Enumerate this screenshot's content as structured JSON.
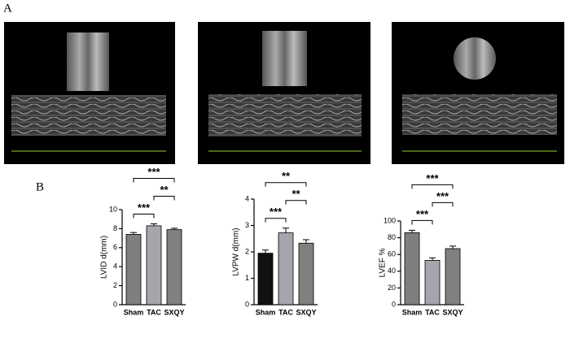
{
  "panel_labels": [
    "A",
    "B"
  ],
  "chart_data": [
    {
      "type": "bar",
      "y_label": "LVID d(mm)",
      "categories": [
        "Sham",
        "TAC",
        "SXQY"
      ],
      "values": [
        7.4,
        8.3,
        7.9
      ],
      "errors": [
        0.2,
        0.2,
        0.15
      ],
      "colors": [
        "#7f7f7f",
        "#a5a5ac",
        "#808080"
      ],
      "ylim": [
        0,
        10
      ],
      "yticks": [
        0,
        2,
        4,
        6,
        8,
        10
      ],
      "annotations": [
        {
          "text": "***",
          "from": 0,
          "to": 1
        },
        {
          "text": "**",
          "from": 1,
          "to": 2
        },
        {
          "text": "***",
          "from": 0,
          "to": 2
        }
      ]
    },
    {
      "type": "bar",
      "y_label": "LVPW d(mm)",
      "categories": [
        "Sham",
        "TAC",
        "SXQY"
      ],
      "values": [
        1.95,
        2.72,
        2.33
      ],
      "errors": [
        0.12,
        0.18,
        0.13
      ],
      "colors": [
        "#111111",
        "#a5a5ac",
        "#808080"
      ],
      "ylim": [
        0,
        4
      ],
      "yticks": [
        0,
        1,
        2,
        3,
        4
      ],
      "annotations": [
        {
          "text": "***",
          "from": 0,
          "to": 1
        },
        {
          "text": "**",
          "from": 1,
          "to": 2
        },
        {
          "text": "**",
          "from": 0,
          "to": 2
        }
      ]
    },
    {
      "type": "bar",
      "y_label": "LVEF %",
      "categories": [
        "Sham",
        "TAC",
        "SXQY"
      ],
      "values": [
        86,
        53,
        67
      ],
      "errors": [
        3,
        3,
        3
      ],
      "colors": [
        "#7f7f7f",
        "#a5a5ac",
        "#808080"
      ],
      "ylim": [
        0,
        100
      ],
      "yticks": [
        0,
        20,
        40,
        60,
        80,
        100
      ],
      "annotations": [
        {
          "text": "***",
          "from": 0,
          "to": 1
        },
        {
          "text": "***",
          "from": 1,
          "to": 2
        },
        {
          "text": "***",
          "from": 0,
          "to": 2
        }
      ]
    }
  ]
}
